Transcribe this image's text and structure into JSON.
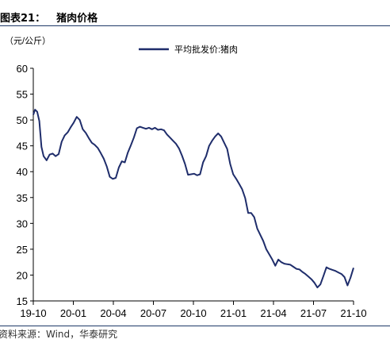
{
  "figure": {
    "label": "图表21：",
    "title": "猪肉价格",
    "source": "资料来源：Wind，华泰研究"
  },
  "chart_data": {
    "type": "line",
    "ylabel": "（元/公斤）",
    "ylim": [
      15,
      60
    ],
    "yticks": [
      15,
      20,
      25,
      30,
      35,
      40,
      45,
      50,
      55,
      60
    ],
    "xticks": [
      "19-10",
      "20-01",
      "20-04",
      "20-07",
      "20-10",
      "21-01",
      "21-04",
      "21-07",
      "21-10"
    ],
    "grid": false,
    "legend_position": "top-center",
    "color": "#1f2d6b",
    "series": [
      {
        "name": "平均批发价:猪肉",
        "x": [
          "2019-10-01",
          "2019-10-05",
          "2019-10-10",
          "2019-10-15",
          "2019-10-20",
          "2019-10-25",
          "2019-11-01",
          "2019-11-08",
          "2019-11-15",
          "2019-11-22",
          "2019-11-29",
          "2019-12-06",
          "2019-12-13",
          "2019-12-20",
          "2019-12-27",
          "2020-01-03",
          "2020-01-10",
          "2020-01-17",
          "2020-01-24",
          "2020-01-31",
          "2020-02-07",
          "2020-02-14",
          "2020-02-21",
          "2020-02-28",
          "2020-03-06",
          "2020-03-13",
          "2020-03-20",
          "2020-03-27",
          "2020-04-03",
          "2020-04-10",
          "2020-04-17",
          "2020-04-24",
          "2020-05-01",
          "2020-05-08",
          "2020-05-15",
          "2020-05-22",
          "2020-05-29",
          "2020-06-05",
          "2020-06-12",
          "2020-06-19",
          "2020-06-26",
          "2020-07-03",
          "2020-07-10",
          "2020-07-17",
          "2020-07-24",
          "2020-07-31",
          "2020-08-07",
          "2020-08-14",
          "2020-08-21",
          "2020-08-28",
          "2020-09-04",
          "2020-09-11",
          "2020-09-18",
          "2020-09-25",
          "2020-10-02",
          "2020-10-09",
          "2020-10-16",
          "2020-10-23",
          "2020-10-30",
          "2020-11-06",
          "2020-11-13",
          "2020-11-20",
          "2020-11-27",
          "2020-12-04",
          "2020-12-11",
          "2020-12-18",
          "2020-12-25",
          "2021-01-01",
          "2021-01-08",
          "2021-01-15",
          "2021-01-22",
          "2021-01-29",
          "2021-02-05",
          "2021-02-12",
          "2021-02-19",
          "2021-02-26",
          "2021-03-05",
          "2021-03-12",
          "2021-03-19",
          "2021-03-26",
          "2021-04-02",
          "2021-04-09",
          "2021-04-16",
          "2021-04-23",
          "2021-04-30",
          "2021-05-07",
          "2021-05-14",
          "2021-05-21",
          "2021-05-28",
          "2021-06-04",
          "2021-06-11",
          "2021-06-18",
          "2021-06-25",
          "2021-07-02",
          "2021-07-09",
          "2021-07-16",
          "2021-07-23",
          "2021-07-30",
          "2021-08-06",
          "2021-08-13",
          "2021-08-20",
          "2021-08-27",
          "2021-09-03",
          "2021-09-10",
          "2021-09-17",
          "2021-09-24",
          "2021-10-01",
          "2021-10-08",
          "2021-10-15"
        ],
        "values": [
          51.0,
          52.0,
          51.6,
          49.8,
          44.8,
          43.0,
          42.2,
          43.3,
          43.5,
          43.0,
          43.4,
          45.8,
          47.0,
          47.6,
          48.6,
          49.5,
          50.6,
          50.0,
          48.2,
          47.5,
          46.5,
          45.6,
          45.2,
          44.6,
          43.6,
          42.5,
          41.0,
          39.0,
          38.6,
          38.8,
          40.8,
          42.0,
          41.8,
          43.7,
          45.1,
          46.6,
          48.4,
          48.7,
          48.5,
          48.3,
          48.5,
          48.2,
          48.5,
          48.1,
          48.2,
          48.0,
          47.2,
          46.6,
          46.0,
          45.4,
          44.5,
          43.1,
          41.5,
          39.4,
          39.5,
          39.6,
          39.3,
          39.5,
          41.8,
          43.0,
          45.0,
          46.0,
          46.8,
          47.4,
          46.8,
          45.6,
          44.4,
          41.5,
          39.5,
          38.6,
          37.6,
          36.6,
          34.9,
          32.0,
          32.0,
          31.2,
          29.0,
          27.8,
          26.6,
          25.0,
          24.0,
          23.0,
          21.8,
          23.0,
          22.5,
          22.2,
          22.1,
          22.0,
          21.6,
          21.2,
          21.1,
          20.6,
          20.2,
          19.7,
          19.2,
          18.5,
          17.6,
          18.2,
          19.8,
          21.5,
          21.2,
          21.0,
          20.8,
          20.5,
          20.2,
          19.6,
          18.0,
          19.5,
          21.4
        ]
      }
    ]
  }
}
